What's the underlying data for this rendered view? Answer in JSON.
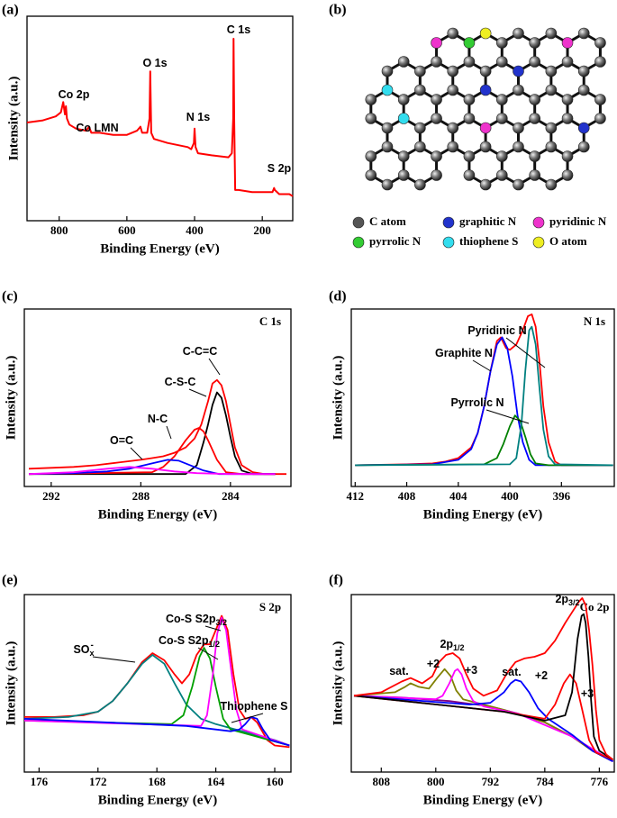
{
  "chart_data": [
    {
      "type": "line",
      "panel": "(a)",
      "xlabel": "Binding Energy (eV)",
      "ylabel": "Intensity (a.u.)",
      "xlim": [
        895,
        110
      ],
      "ylim": [
        0,
        100
      ],
      "xticks": [
        800,
        600,
        400,
        200
      ],
      "annotations": [
        {
          "text": "Co 2p"
        },
        {
          "text": "Co LMN"
        },
        {
          "text": "O 1s"
        },
        {
          "text": "N 1s"
        },
        {
          "text": "C 1s"
        },
        {
          "text": "S 2p"
        }
      ],
      "series": [
        {
          "color": "#ff0000",
          "x": [
            895,
            850,
            810,
            795,
            788,
            783,
            780,
            777,
            770,
            750,
            720,
            712,
            705,
            680,
            640,
            600,
            570,
            560,
            555,
            540,
            533,
            531,
            528,
            520,
            480,
            420,
            410,
            402,
            400,
            397,
            390,
            350,
            300,
            290,
            286,
            284.8,
            283,
            280,
            270,
            230,
            200,
            170,
            165,
            163,
            150,
            120,
            110
          ],
          "values": [
            48,
            49,
            51,
            53,
            58,
            52,
            56,
            50,
            47,
            45,
            44,
            46,
            43,
            43,
            42,
            42,
            44,
            46,
            43,
            43,
            50,
            73,
            43,
            40,
            38,
            36,
            35,
            38,
            45,
            36,
            33,
            32,
            31,
            33,
            50,
            89,
            50,
            15,
            15,
            14,
            14,
            14,
            16,
            15,
            13,
            13,
            12
          ]
        }
      ]
    },
    {
      "type": "line",
      "panel": "(c)",
      "title": "C 1s",
      "xlabel": "Binding Energy (eV)",
      "ylabel": "Intensity (a.u.)",
      "xlim": [
        293.2,
        281.3
      ],
      "ylim": [
        0,
        100
      ],
      "xticks": [
        292,
        288,
        284
      ],
      "annotations": [
        {
          "text": "C-C=C"
        },
        {
          "text": "C-S-C"
        },
        {
          "text": "N-C"
        },
        {
          "text": "O=C"
        }
      ],
      "series": [
        {
          "color": "#ff0000",
          "x": [
            293,
            292,
            291,
            290,
            289,
            288,
            287.5,
            287,
            286.5,
            286,
            285.6,
            285.3,
            285,
            284.8,
            284.6,
            284.4,
            284.2,
            284,
            283.8,
            283.5,
            283,
            282.5,
            281.5
          ],
          "values": [
            10,
            10.5,
            11,
            12,
            13.5,
            15,
            16,
            17,
            19,
            22,
            27,
            35,
            48,
            58,
            60,
            57,
            48,
            35,
            22,
            12,
            8,
            7,
            7
          ]
        },
        {
          "color": "#000000",
          "x": [
            293,
            286,
            285.5,
            285.2,
            285,
            284.8,
            284.6,
            284.4,
            284.2,
            284,
            283.8,
            283.5,
            283,
            282
          ],
          "values": [
            7,
            7,
            12,
            25,
            35,
            46,
            53,
            50,
            40,
            28,
            17,
            9,
            7,
            7
          ]
        },
        {
          "color": "#ff0000",
          "x": [
            293,
            287.5,
            287,
            286.5,
            286,
            285.6,
            285.4,
            285.2,
            285,
            284.6,
            284.2,
            283.5,
            282
          ],
          "values": [
            7,
            8,
            11,
            17,
            26,
            32,
            33,
            31,
            26,
            15,
            8,
            7,
            7
          ]
        },
        {
          "color": "#0000ff",
          "x": [
            293,
            291,
            289.5,
            288.5,
            287.5,
            286.8,
            286.3,
            285.8,
            285.2,
            284.5,
            282
          ],
          "values": [
            7,
            7.5,
            8.5,
            10,
            13,
            15,
            14.5,
            12,
            9,
            7,
            7
          ]
        },
        {
          "color": "#ff00ff",
          "x": [
            293,
            291,
            289.5,
            288.5,
            287.5,
            286.5,
            285.5,
            284,
            282
          ],
          "values": [
            7,
            8,
            10,
            11,
            10,
            8.5,
            7.5,
            7,
            7
          ]
        }
      ]
    },
    {
      "type": "line",
      "panel": "(d)",
      "title": "N 1s",
      "xlabel": "Binding Energy (eV)",
      "ylabel": "Intensity (a.u.)",
      "xlim": [
        412.3,
        391.9
      ],
      "ylim": [
        0,
        100
      ],
      "xticks": [
        412,
        408,
        404,
        400,
        396
      ],
      "annotations": [
        {
          "text": "Pyridinic N"
        },
        {
          "text": "Graphite N"
        },
        {
          "text": "Pyrrolic N"
        }
      ],
      "series": [
        {
          "color": "#ff0000",
          "x": [
            412,
            408,
            406,
            405,
            404,
            403,
            402.5,
            402,
            401.5,
            401,
            400.7,
            400.3,
            400,
            399.5,
            399,
            398.6,
            398.3,
            398,
            397.7,
            397.4,
            397,
            396.5,
            396,
            392
          ],
          "values": [
            12,
            12.5,
            13,
            14,
            16,
            22,
            30,
            45,
            65,
            82,
            84,
            78,
            77,
            80,
            88,
            96,
            97,
            90,
            70,
            45,
            25,
            14,
            12,
            12
          ]
        },
        {
          "color": "#0000ff",
          "x": [
            412,
            406,
            404,
            403,
            402.5,
            402,
            401.5,
            401,
            400.6,
            400.2,
            399.8,
            399.4,
            399,
            398.5,
            398,
            392
          ],
          "values": [
            12,
            12.5,
            15,
            21,
            30,
            45,
            65,
            80,
            84,
            78,
            62,
            40,
            25,
            15,
            12,
            12
          ]
        },
        {
          "color": "#008000",
          "x": [
            412,
            402,
            401,
            400.5,
            400,
            399.6,
            399.2,
            398.8,
            398.4,
            398,
            397,
            392
          ],
          "values": [
            12,
            12.5,
            16,
            24,
            34,
            40,
            37,
            28,
            18,
            13,
            12,
            12
          ]
        },
        {
          "color": "#008080",
          "x": [
            412,
            400,
            399.5,
            399.1,
            398.8,
            398.5,
            398.3,
            398,
            397.7,
            397.4,
            397,
            396.5,
            392
          ],
          "values": [
            12,
            12.5,
            16,
            35,
            65,
            88,
            90,
            80,
            55,
            32,
            17,
            12.5,
            12
          ]
        }
      ]
    },
    {
      "type": "line",
      "panel": "(e)",
      "title": "S 2p",
      "xlabel": "Binding Energy (eV)",
      "ylabel": "Intensity (a.u.)",
      "xlim": [
        177,
        158.9
      ],
      "ylim": [
        0,
        100
      ],
      "xticks": [
        176,
        172,
        168,
        164,
        160
      ],
      "annotations": [
        {
          "text": "Co-S S2p",
          "sub": "3/2"
        },
        {
          "text": "Co-S S2p",
          "sub": "1/2"
        },
        {
          "text": "SO",
          "sub": "x",
          "sup": "-"
        },
        {
          "text": "Thiophene S"
        }
      ],
      "series": [
        {
          "color": "#ff0000",
          "x": [
            177,
            175,
            173,
            172,
            171,
            170,
            169,
            168.3,
            167.5,
            166.8,
            166.3,
            165.8,
            165.3,
            164.8,
            164.4,
            164,
            163.6,
            163.2,
            162.8,
            162.4,
            162,
            161.6,
            161.2,
            160.5,
            160,
            159
          ],
          "values": [
            31,
            31,
            32,
            34,
            40,
            50,
            62,
            67,
            63,
            55,
            50,
            55,
            66,
            72,
            72,
            80,
            88,
            80,
            55,
            35,
            30,
            31,
            28,
            18,
            15,
            14
          ]
        },
        {
          "color": "#008080",
          "x": [
            177,
            174,
            172,
            171,
            170,
            169,
            168.3,
            167.5,
            166.8,
            166,
            165,
            164,
            160,
            159
          ],
          "values": [
            30,
            31,
            34,
            40,
            50,
            61,
            66,
            61,
            50,
            38,
            30,
            27,
            18,
            15
          ]
        },
        {
          "color": "#00a000",
          "x": [
            177,
            167,
            166.2,
            165.6,
            165.1,
            164.8,
            164.4,
            164,
            163.5,
            163,
            159
          ],
          "values": [
            29,
            27,
            32,
            48,
            65,
            70,
            64,
            48,
            30,
            24,
            15
          ]
        },
        {
          "color": "#ff00ff",
          "x": [
            177,
            165,
            164.6,
            164.2,
            163.9,
            163.6,
            163.3,
            163,
            162.6,
            162.2,
            159
          ],
          "values": [
            29,
            26,
            32,
            55,
            78,
            87,
            80,
            60,
            35,
            24,
            15
          ]
        },
        {
          "color": "#0000ff",
          "x": [
            177,
            166,
            163,
            162.4,
            162,
            161.6,
            161.2,
            160.8,
            160.3,
            159
          ],
          "values": [
            30,
            26,
            23,
            24,
            27,
            31,
            30,
            24,
            18,
            15
          ]
        }
      ]
    },
    {
      "type": "line",
      "panel": "(f)",
      "title": "Co 2p",
      "xlabel": "Binding Energy (eV)",
      "ylabel": "Intensity (a.u.)",
      "xlim": [
        812.4,
        773.8
      ],
      "ylim": [
        0,
        100
      ],
      "xticks": [
        808,
        800,
        792,
        784,
        776
      ],
      "annotations": [
        {
          "text": "2p",
          "sub": "3/2"
        },
        {
          "text": "2p",
          "sub": "1/2"
        },
        {
          "text": "+2"
        },
        {
          "text": "+3"
        },
        {
          "text": "sat."
        },
        {
          "text": "+2"
        },
        {
          "text": "+3"
        },
        {
          "text": "sat."
        }
      ],
      "series": [
        {
          "color": "#800080",
          "x": [
            812,
            805,
            798,
            792,
            788,
            784,
            780,
            777,
            774
          ],
          "values": [
            43,
            42,
            40,
            37,
            33,
            28,
            20,
            12,
            6
          ]
        },
        {
          "color": "#808000",
          "x": [
            812,
            806,
            804.5,
            803.7,
            802.5,
            801,
            799.8,
            798.7,
            797.8,
            797,
            796,
            793,
            790,
            784,
            780,
            777,
            774
          ],
          "values": [
            43,
            45,
            48,
            50,
            48,
            47,
            53,
            58,
            54,
            46,
            41,
            38,
            35,
            28,
            20,
            12,
            6
          ]
        },
        {
          "color": "#ff00ff",
          "x": [
            812,
            800,
            799,
            798,
            797.2,
            796.8,
            796.2,
            795.5,
            794.5,
            793,
            788,
            780,
            774
          ],
          "values": [
            43,
            41,
            43,
            50,
            57,
            58,
            55,
            47,
            40,
            37,
            33,
            20,
            6
          ]
        },
        {
          "color": "#0000ff",
          "x": [
            812,
            795,
            792,
            790,
            789,
            788.3,
            787.5,
            786.3,
            785,
            783.5,
            780,
            777,
            774
          ],
          "values": [
            43,
            38,
            39,
            45,
            50,
            52,
            51,
            45,
            36,
            30,
            21,
            12,
            6
          ]
        },
        {
          "color": "#ff0000",
          "x": [
            812,
            790,
            784,
            782.5,
            781.2,
            780.3,
            779.4,
            778.5,
            777.5,
            776.5,
            774
          ],
          "values": [
            43,
            34,
            30,
            38,
            50,
            55,
            50,
            35,
            18,
            11,
            7
          ]
        },
        {
          "color": "#000000",
          "x": [
            812,
            790,
            784,
            781,
            780,
            779.2,
            778.6,
            778.3,
            778,
            777.6,
            777.2,
            776.8,
            776,
            774
          ],
          "values": [
            43,
            34,
            29,
            32,
            45,
            75,
            88,
            89,
            84,
            65,
            40,
            20,
            12,
            7
          ]
        },
        {
          "color": "#ff0000",
          "x": [
            812,
            808,
            805,
            803.7,
            802,
            800.5,
            799.5,
            798.5,
            797.5,
            796.5,
            795.5,
            794.5,
            793,
            791,
            789.5,
            788.3,
            787,
            785.5,
            784,
            782.5,
            781,
            780,
            779,
            778.5,
            778,
            777.5,
            777,
            776.5,
            776,
            775,
            774
          ],
          "values": [
            43,
            45,
            51,
            53,
            50,
            54,
            62,
            66,
            67,
            64,
            55,
            47,
            43,
            46,
            56,
            62,
            64,
            65,
            67,
            74,
            84,
            90,
            96,
            98,
            94,
            80,
            60,
            35,
            18,
            10,
            7
          ]
        }
      ]
    }
  ],
  "diagram": {
    "panel": "(b)",
    "legend": [
      {
        "label": "C atom",
        "color": "#555555"
      },
      {
        "label": "graphitic N",
        "color": "#2233cc"
      },
      {
        "label": "pyridinic N",
        "color": "#ee33cc"
      },
      {
        "label": "pyrrolic N",
        "color": "#33cc33"
      },
      {
        "label": "thiophene S",
        "color": "#33ddee"
      },
      {
        "label": "O atom",
        "color": "#eeee22"
      }
    ]
  }
}
